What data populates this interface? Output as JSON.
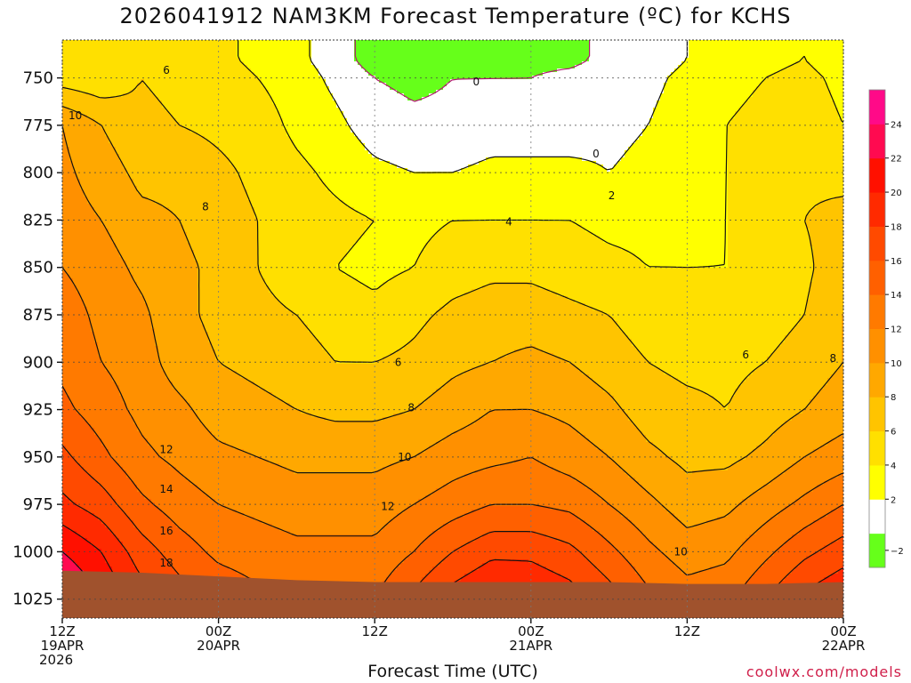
{
  "chart_data": {
    "type": "heatmap",
    "title": "2026041912 NAM3KM Forecast Temperature (ºC) for KCHS",
    "xlabel": "Forecast Time (UTC)",
    "ylabel": "",
    "credit": "coolwx.com/models",
    "y_axis": {
      "unit": "hPa",
      "range": [
        730,
        1035
      ],
      "ticks": [
        750,
        775,
        800,
        825,
        850,
        875,
        900,
        925,
        950,
        975,
        1000,
        1025
      ]
    },
    "x_axis": {
      "range_hours": [
        0,
        60
      ],
      "ticks": [
        {
          "hour": 0,
          "lines": [
            "12Z",
            "19APR",
            "2026"
          ]
        },
        {
          "hour": 12,
          "lines": [
            "00Z",
            "20APR"
          ]
        },
        {
          "hour": 24,
          "lines": [
            "12Z"
          ]
        },
        {
          "hour": 36,
          "lines": [
            "00Z",
            "21APR"
          ]
        },
        {
          "hour": 48,
          "lines": [
            "12Z"
          ]
        },
        {
          "hour": 60,
          "lines": [
            "00Z",
            "22APR"
          ]
        }
      ]
    },
    "grid": true,
    "colorbar": {
      "levels": [
        -2,
        0,
        2,
        4,
        6,
        8,
        10,
        12,
        14,
        16,
        18,
        20,
        22,
        24
      ],
      "tick_labels": [
        "−2",
        "2",
        "4",
        "6",
        "8",
        "10",
        "12",
        "14",
        "16",
        "18",
        "20",
        "22",
        "24"
      ],
      "colors": [
        "#66ff1a",
        "#ffffff",
        "#ffff00",
        "#ffe000",
        "#ffc400",
        "#ffa800",
        "#ff9000",
        "#ff7a00",
        "#ff6000",
        "#ff4a00",
        "#ff2a00",
        "#ff1000",
        "#ff0a50",
        "#ff0a88"
      ]
    },
    "surface_color": "#a0522d",
    "column_hours": [
      0,
      3,
      6,
      9,
      12,
      15,
      18,
      21,
      24,
      27,
      30,
      33,
      36,
      39,
      42,
      45,
      48,
      51,
      54,
      57,
      60
    ],
    "pressure_levels": [
      740,
      750,
      775,
      800,
      825,
      850,
      875,
      900,
      925,
      950,
      975,
      1000,
      1025
    ],
    "temperature_c": [
      [
        4.5,
        4.0,
        5.5,
        5.0,
        4.5,
        3.5,
        2.5,
        1.0,
        -1.0,
        -1.5,
        -1.0,
        -1.0,
        -0.5,
        -0.5,
        0.5,
        1.0,
        2.0,
        3.0,
        3.5,
        4.0,
        3.0
      ],
      [
        5.0,
        4.5,
        6.0,
        5.5,
        5.0,
        4.0,
        3.0,
        1.5,
        0.0,
        -0.5,
        0.0,
        0.0,
        0.0,
        0.5,
        1.0,
        1.5,
        2.5,
        3.5,
        4.0,
        4.5,
        3.5
      ],
      [
        10.0,
        8.0,
        6.5,
        6.0,
        5.5,
        5.0,
        3.5,
        2.5,
        1.0,
        0.5,
        0.5,
        1.0,
        1.0,
        1.0,
        1.5,
        2.0,
        3.0,
        4.0,
        4.5,
        5.0,
        4.0
      ],
      [
        10.5,
        9.0,
        7.5,
        7.5,
        6.5,
        5.5,
        4.5,
        3.5,
        2.5,
        2.0,
        2.0,
        2.5,
        2.5,
        2.5,
        2.0,
        2.5,
        3.0,
        4.0,
        5.0,
        5.5,
        5.0
      ],
      [
        11.0,
        10.0,
        8.5,
        8.0,
        7.0,
        6.0,
        5.0,
        4.5,
        4.0,
        3.5,
        4.0,
        4.0,
        4.0,
        4.0,
        3.5,
        3.5,
        3.5,
        4.0,
        5.0,
        6.0,
        7.0
      ],
      [
        12.0,
        11.0,
        9.5,
        8.5,
        7.5,
        6.0,
        5.0,
        4.0,
        3.5,
        4.0,
        5.0,
        5.5,
        5.5,
        5.0,
        4.5,
        4.0,
        4.0,
        4.0,
        4.5,
        5.5,
        7.5
      ],
      [
        13.0,
        11.5,
        10.5,
        8.5,
        7.5,
        6.5,
        6.0,
        5.0,
        4.5,
        5.5,
        6.5,
        7.0,
        7.0,
        6.5,
        6.0,
        5.0,
        4.5,
        4.5,
        5.0,
        6.0,
        8.0
      ],
      [
        13.5,
        12.0,
        11.0,
        9.0,
        8.0,
        7.5,
        7.0,
        6.0,
        6.0,
        6.5,
        7.5,
        8.0,
        8.5,
        8.0,
        7.0,
        6.0,
        5.5,
        5.5,
        6.0,
        7.0,
        8.0
      ],
      [
        14.5,
        13.0,
        11.5,
        10.5,
        9.0,
        8.5,
        8.0,
        7.5,
        7.5,
        8.0,
        9.0,
        10.0,
        10.0,
        9.5,
        8.5,
        7.0,
        6.5,
        6.0,
        7.0,
        8.0,
        9.0
      ],
      [
        16.5,
        14.5,
        12.5,
        11.5,
        10.5,
        10.0,
        9.5,
        9.5,
        9.5,
        10.0,
        11.0,
        11.5,
        12.0,
        11.0,
        10.0,
        8.5,
        7.5,
        7.5,
        8.5,
        10.0,
        11.0
      ],
      [
        18.5,
        17.0,
        14.5,
        13.0,
        12.0,
        11.5,
        11.0,
        11.0,
        11.0,
        12.0,
        13.0,
        14.0,
        14.0,
        13.5,
        12.0,
        10.5,
        9.0,
        9.5,
        11.0,
        12.5,
        14.0
      ],
      [
        22.0,
        20.0,
        17.0,
        15.0,
        13.5,
        13.0,
        12.5,
        12.5,
        12.5,
        14.0,
        16.0,
        17.5,
        17.5,
        16.5,
        14.5,
        12.5,
        11.0,
        11.5,
        13.5,
        15.5,
        17.0
      ],
      [
        25.0,
        22.0,
        19.0,
        17.0,
        15.5,
        14.5,
        14.0,
        14.0,
        14.0,
        16.5,
        19.0,
        20.5,
        20.0,
        19.0,
        17.0,
        14.5,
        13.0,
        13.5,
        16.0,
        18.5,
        20.0
      ]
    ],
    "contour_labels": [
      {
        "text": "0",
        "hour": 31.8,
        "p": 752
      },
      {
        "text": "0",
        "hour": 41.0,
        "p": 790
      },
      {
        "text": "2",
        "hour": 42.2,
        "p": 812
      },
      {
        "text": "4",
        "hour": 34.3,
        "p": 826
      },
      {
        "text": "6",
        "hour": 8.0,
        "p": 746
      },
      {
        "text": "6",
        "hour": 25.8,
        "p": 900
      },
      {
        "text": "6",
        "hour": 52.5,
        "p": 896
      },
      {
        "text": "8",
        "hour": 11.0,
        "p": 818
      },
      {
        "text": "8",
        "hour": 26.8,
        "p": 924
      },
      {
        "text": "8",
        "hour": 59.2,
        "p": 898
      },
      {
        "text": "10",
        "hour": 1.0,
        "p": 770
      },
      {
        "text": "10",
        "hour": 26.3,
        "p": 950
      },
      {
        "text": "10",
        "hour": 47.5,
        "p": 1000
      },
      {
        "text": "12",
        "hour": 8.0,
        "p": 946
      },
      {
        "text": "12",
        "hour": 25.0,
        "p": 976
      },
      {
        "text": "14",
        "hour": 8.0,
        "p": 967
      },
      {
        "text": "16",
        "hour": 8.0,
        "p": 989
      },
      {
        "text": "18",
        "hour": 8.0,
        "p": 1006
      }
    ]
  }
}
